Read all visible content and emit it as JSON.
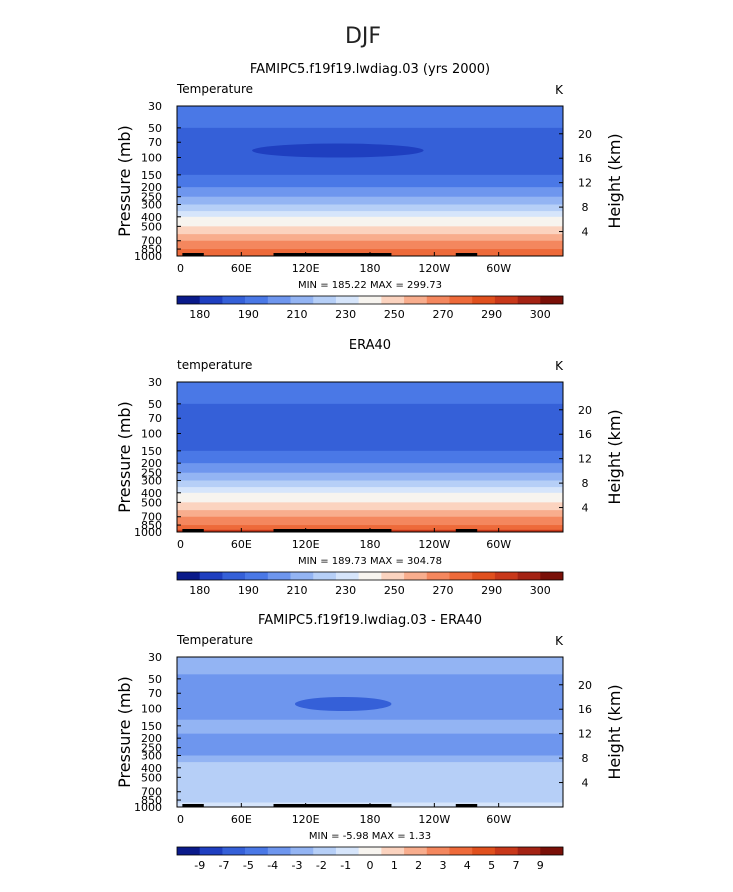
{
  "page_title": "DJF",
  "chart_data": [
    {
      "type": "heatmap",
      "title": "FAMIPC5.f19f19.lwdiag.03 (yrs 2000)",
      "variable_label": "Temperature",
      "units": "K",
      "ylabel": "Pressure (mb)",
      "ylabel_right": "Height (km)",
      "x_ticks": [
        "0",
        "60E",
        "120E",
        "180",
        "120W",
        "60W"
      ],
      "y_ticks": [
        "30",
        "50",
        "70",
        "100",
        "150",
        "200",
        "250",
        "300",
        "400",
        "500",
        "700",
        "850",
        "1000"
      ],
      "height_ticks": [
        "20",
        "16",
        "12",
        "8",
        "4"
      ],
      "stats": "MIN = 185.22  MAX = 299.73",
      "min": 185.22,
      "max": 299.73,
      "colorbar_labels": [
        "180",
        "190",
        "210",
        "230",
        "250",
        "270",
        "290",
        "300"
      ],
      "colorbar_colors": [
        "#0a1a8a",
        "#1f3fc0",
        "#3560d8",
        "#4a78e6",
        "#6e96ee",
        "#93b4f3",
        "#b6cff7",
        "#d6e5fb",
        "#f7f4ef",
        "#fbd3bf",
        "#f8ad8d",
        "#f4875e",
        "#ee6a3a",
        "#e0501e",
        "#c8381a",
        "#a42314",
        "#7a1008"
      ],
      "bands": [
        {
          "level": "30",
          "color": "#4a78e6"
        },
        {
          "level": "50",
          "color": "#3560d8"
        },
        {
          "level": "100",
          "color": "#3560d8"
        },
        {
          "level": "150",
          "color": "#4a78e6"
        },
        {
          "level": "200",
          "color": "#6e96ee"
        },
        {
          "level": "250",
          "color": "#93b4f3"
        },
        {
          "level": "300",
          "color": "#b6cff7"
        },
        {
          "level": "350",
          "color": "#d6e5fb"
        },
        {
          "level": "400",
          "color": "#f7f4ef"
        },
        {
          "level": "500",
          "color": "#fbd3bf"
        },
        {
          "level": "600",
          "color": "#f8ad8d"
        },
        {
          "level": "700",
          "color": "#f4875e"
        },
        {
          "level": "850",
          "color": "#ee6a3a"
        },
        {
          "level": "1000",
          "color": "#e0501e"
        }
      ],
      "extremum": {
        "color": "#1f3fc0",
        "lon_from": 70,
        "lon_to": 230,
        "level": "85"
      }
    },
    {
      "type": "heatmap",
      "title": "ERA40",
      "variable_label": "temperature",
      "units": "K",
      "ylabel": "Pressure (mb)",
      "ylabel_right": "Height (km)",
      "x_ticks": [
        "0",
        "60E",
        "120E",
        "180",
        "120W",
        "60W"
      ],
      "y_ticks": [
        "30",
        "50",
        "70",
        "100",
        "150",
        "200",
        "250",
        "300",
        "400",
        "500",
        "700",
        "850",
        "1000"
      ],
      "height_ticks": [
        "20",
        "16",
        "12",
        "8",
        "4"
      ],
      "stats": "MIN = 189.73  MAX = 304.78",
      "min": 189.73,
      "max": 304.78,
      "colorbar_labels": [
        "180",
        "190",
        "210",
        "230",
        "250",
        "270",
        "290",
        "300"
      ],
      "colorbar_colors": [
        "#0a1a8a",
        "#1f3fc0",
        "#3560d8",
        "#4a78e6",
        "#6e96ee",
        "#93b4f3",
        "#b6cff7",
        "#d6e5fb",
        "#f7f4ef",
        "#fbd3bf",
        "#f8ad8d",
        "#f4875e",
        "#ee6a3a",
        "#e0501e",
        "#c8381a",
        "#a42314",
        "#7a1008"
      ],
      "bands": [
        {
          "level": "30",
          "color": "#4a78e6"
        },
        {
          "level": "50",
          "color": "#3560d8"
        },
        {
          "level": "100",
          "color": "#3560d8"
        },
        {
          "level": "150",
          "color": "#4a78e6"
        },
        {
          "level": "200",
          "color": "#6e96ee"
        },
        {
          "level": "250",
          "color": "#93b4f3"
        },
        {
          "level": "300",
          "color": "#b6cff7"
        },
        {
          "level": "350",
          "color": "#d6e5fb"
        },
        {
          "level": "400",
          "color": "#f7f4ef"
        },
        {
          "level": "500",
          "color": "#fbd3bf"
        },
        {
          "level": "600",
          "color": "#f8ad8d"
        },
        {
          "level": "700",
          "color": "#f4875e"
        },
        {
          "level": "850",
          "color": "#ee6a3a"
        },
        {
          "level": "950",
          "color": "#c8381a"
        }
      ]
    },
    {
      "type": "heatmap",
      "title": "FAMIPC5.f19f19.lwdiag.03 - ERA40",
      "variable_label": "Temperature",
      "units": "K",
      "ylabel": "Pressure (mb)",
      "ylabel_right": "Height (km)",
      "x_ticks": [
        "0",
        "60E",
        "120E",
        "180",
        "120W",
        "60W"
      ],
      "y_ticks": [
        "30",
        "50",
        "70",
        "100",
        "150",
        "200",
        "250",
        "300",
        "400",
        "500",
        "700",
        "850",
        "1000"
      ],
      "height_ticks": [
        "20",
        "16",
        "12",
        "8",
        "4"
      ],
      "stats": "MIN =  -5.98  MAX =   1.33",
      "min": -5.98,
      "max": 1.33,
      "colorbar_labels": [
        "-9",
        "-7",
        "-5",
        "-4",
        "-3",
        "-2",
        "-1",
        "0",
        "1",
        "2",
        "3",
        "4",
        "5",
        "7",
        "9"
      ],
      "colorbar_colors": [
        "#0a1a8a",
        "#1f3fc0",
        "#3560d8",
        "#4a78e6",
        "#6e96ee",
        "#93b4f3",
        "#b6cff7",
        "#d6e5fb",
        "#f7f4ef",
        "#fbd3bf",
        "#f8ad8d",
        "#f4875e",
        "#ee6a3a",
        "#e0501e",
        "#c8381a",
        "#a42314",
        "#7a1008"
      ],
      "bands": [
        {
          "level": "30",
          "color": "#93b4f3"
        },
        {
          "level": "45",
          "color": "#6e96ee"
        },
        {
          "level": "130",
          "color": "#93b4f3"
        },
        {
          "level": "180",
          "color": "#6e96ee"
        },
        {
          "level": "300",
          "color": "#93b4f3"
        },
        {
          "level": "350",
          "color": "#b6cff7"
        },
        {
          "level": "900",
          "color": "#d6e5fb"
        }
      ],
      "extremum": {
        "color": "#3560d8",
        "lon_from": 110,
        "lon_to": 200,
        "level": "90"
      }
    }
  ]
}
